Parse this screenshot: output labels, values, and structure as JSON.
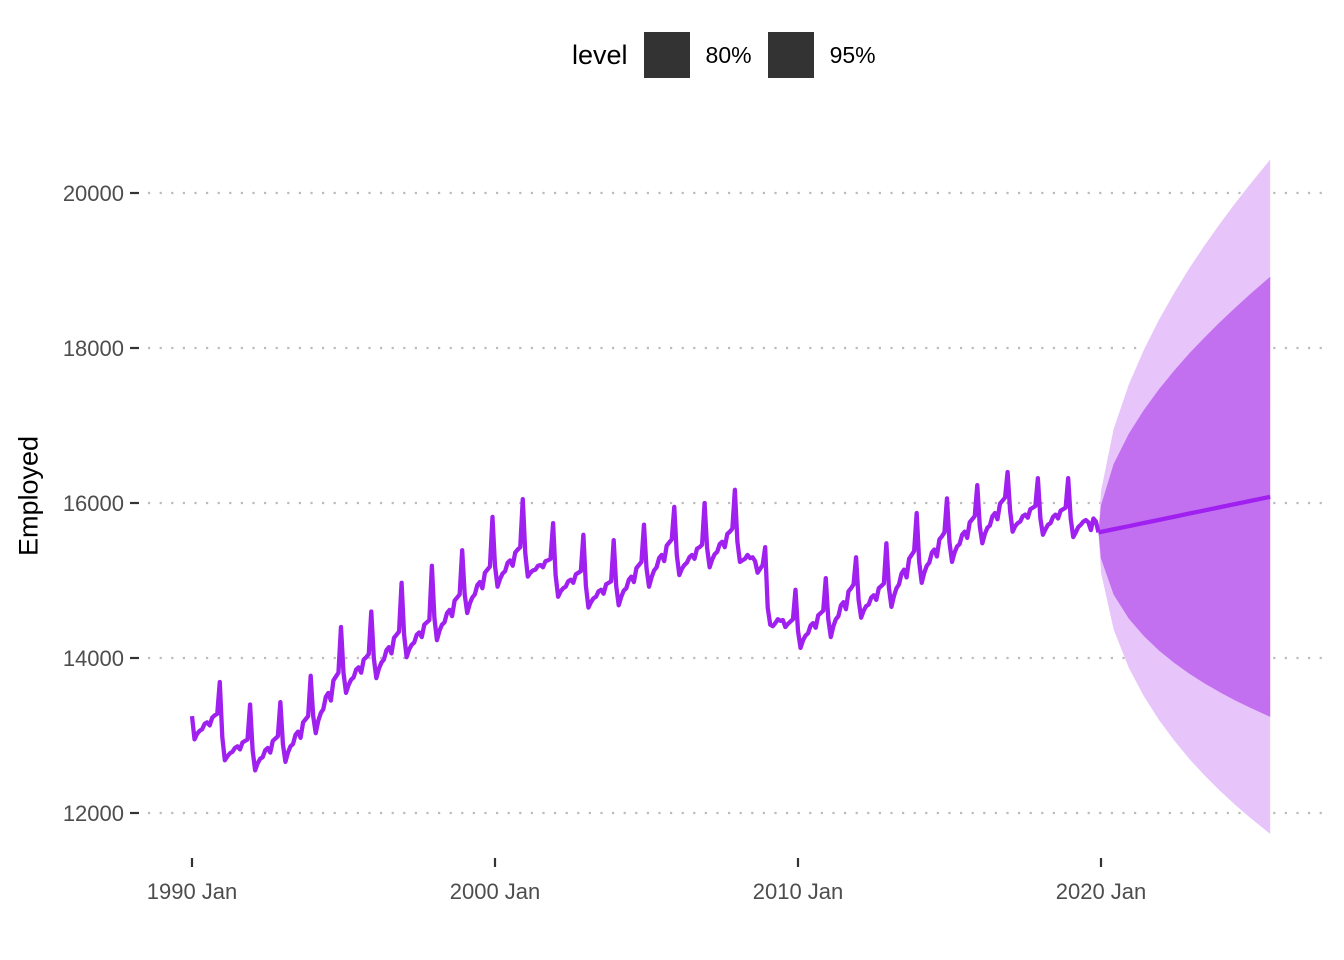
{
  "chart_data": {
    "type": "line",
    "title": "",
    "xlabel": "",
    "ylabel": "Employed",
    "ylim": [
      11700,
      20500
    ],
    "y_ticks": [
      "12000",
      "14000",
      "16000",
      "18000",
      "20000"
    ],
    "x_ticks": [
      "1990 Jan",
      "2000 Jan",
      "2010 Jan",
      "2020 Jan"
    ],
    "grid": "horizontal dotted",
    "legend": {
      "title": "level",
      "position": "top",
      "entries": [
        "80%",
        "95%"
      ]
    },
    "colors": {
      "line": "#A020F0",
      "interval_80": "#C370F0",
      "interval_95": "#E7C4FA",
      "legend_key": "#333333",
      "grid": "#BBBBBB"
    },
    "series": {
      "start": "1990 Jan",
      "frequency": "monthly",
      "years": [
        {
          "year": 1990,
          "values": [
            13250,
            12950,
            13020,
            13060,
            13080,
            13150,
            13170,
            13130,
            13230,
            13260,
            13280,
            13690
          ]
        },
        {
          "year": 1991,
          "values": [
            12980,
            12680,
            12730,
            12770,
            12790,
            12840,
            12860,
            12820,
            12910,
            12930,
            12950,
            13400
          ]
        },
        {
          "year": 1992,
          "values": [
            12810,
            12550,
            12640,
            12700,
            12720,
            12810,
            12840,
            12780,
            12930,
            12960,
            12990,
            13430
          ]
        },
        {
          "year": 1993,
          "values": [
            12890,
            12660,
            12780,
            12860,
            12890,
            13010,
            13050,
            12970,
            13170,
            13210,
            13250,
            13770
          ]
        },
        {
          "year": 1994,
          "values": [
            13250,
            13030,
            13190,
            13290,
            13340,
            13500,
            13550,
            13450,
            13710,
            13760,
            13810,
            14400
          ]
        },
        {
          "year": 1995,
          "values": [
            13810,
            13550,
            13650,
            13720,
            13750,
            13850,
            13880,
            13810,
            13980,
            14010,
            14050,
            14600
          ]
        },
        {
          "year": 1996,
          "values": [
            14000,
            13740,
            13860,
            13940,
            13980,
            14100,
            14140,
            14060,
            14260,
            14300,
            14340,
            14970
          ]
        },
        {
          "year": 1997,
          "values": [
            14300,
            14010,
            14110,
            14170,
            14200,
            14300,
            14330,
            14270,
            14430,
            14460,
            14490,
            15190
          ]
        },
        {
          "year": 1998,
          "values": [
            14520,
            14230,
            14350,
            14430,
            14460,
            14580,
            14620,
            14540,
            14740,
            14780,
            14820,
            15390
          ]
        },
        {
          "year": 1999,
          "values": [
            14820,
            14580,
            14700,
            14780,
            14820,
            14940,
            14980,
            14900,
            15100,
            15140,
            15180,
            15820
          ]
        },
        {
          "year": 2000,
          "values": [
            15190,
            14920,
            15020,
            15090,
            15120,
            15230,
            15260,
            15190,
            15360,
            15400,
            15430,
            16050
          ]
        },
        {
          "year": 2001,
          "values": [
            15350,
            15050,
            15100,
            15130,
            15140,
            15190,
            15200,
            15170,
            15250,
            15260,
            15280,
            15740
          ]
        },
        {
          "year": 2002,
          "values": [
            15070,
            14790,
            14860,
            14900,
            14920,
            14990,
            15010,
            14970,
            15080,
            15100,
            15120,
            15590
          ]
        },
        {
          "year": 2003,
          "values": [
            14930,
            14650,
            14720,
            14770,
            14790,
            14860,
            14880,
            14830,
            14950,
            14970,
            14990,
            15520
          ]
        },
        {
          "year": 2004,
          "values": [
            14930,
            14680,
            14790,
            14870,
            14900,
            15010,
            15050,
            14980,
            15160,
            15200,
            15240,
            15720
          ]
        },
        {
          "year": 2005,
          "values": [
            15160,
            14920,
            15040,
            15130,
            15170,
            15290,
            15330,
            15250,
            15450,
            15490,
            15530,
            15950
          ]
        },
        {
          "year": 2006,
          "values": [
            15330,
            15070,
            15150,
            15200,
            15230,
            15300,
            15330,
            15280,
            15410,
            15430,
            15460,
            16000
          ]
        },
        {
          "year": 2007,
          "values": [
            15420,
            15170,
            15270,
            15340,
            15370,
            15470,
            15500,
            15430,
            15600,
            15630,
            15670,
            16170
          ]
        },
        {
          "year": 2008,
          "values": [
            15500,
            15240,
            15260,
            15280,
            15330,
            15290,
            15300,
            15250,
            15100,
            15150,
            15200,
            15430
          ]
        },
        {
          "year": 2009,
          "values": [
            14650,
            14430,
            14410,
            14450,
            14500,
            14480,
            14490,
            14400,
            14440,
            14470,
            14500,
            14880
          ]
        },
        {
          "year": 2010,
          "values": [
            14350,
            14130,
            14230,
            14290,
            14320,
            14420,
            14450,
            14390,
            14550,
            14580,
            14610,
            15030
          ]
        },
        {
          "year": 2011,
          "values": [
            14500,
            14270,
            14410,
            14500,
            14540,
            14680,
            14720,
            14630,
            14860,
            14900,
            14950,
            15300
          ]
        },
        {
          "year": 2012,
          "values": [
            14750,
            14520,
            14610,
            14670,
            14690,
            14780,
            14810,
            14750,
            14900,
            14930,
            14960,
            15480
          ]
        },
        {
          "year": 2013,
          "values": [
            14910,
            14660,
            14800,
            14900,
            14950,
            15090,
            15140,
            15040,
            15280,
            15330,
            15380,
            15870
          ]
        },
        {
          "year": 2014,
          "values": [
            15240,
            14970,
            15100,
            15190,
            15230,
            15360,
            15400,
            15310,
            15530,
            15570,
            15620,
            16060
          ]
        },
        {
          "year": 2015,
          "values": [
            15490,
            15240,
            15360,
            15440,
            15470,
            15590,
            15630,
            15550,
            15750,
            15790,
            15830,
            16230
          ]
        },
        {
          "year": 2016,
          "values": [
            15700,
            15480,
            15600,
            15680,
            15710,
            15830,
            15870,
            15790,
            15990,
            16030,
            16070,
            16400
          ]
        },
        {
          "year": 2017,
          "values": [
            15900,
            15630,
            15700,
            15740,
            15760,
            15830,
            15850,
            15810,
            15920,
            15940,
            15960,
            16320
          ]
        },
        {
          "year": 2018,
          "values": [
            15800,
            15590,
            15660,
            15720,
            15740,
            15820,
            15850,
            15800,
            15900,
            15920,
            15940,
            16320
          ]
        },
        {
          "year": 2019,
          "values": [
            15800,
            15560,
            15620,
            15690,
            15720,
            15760,
            15780,
            15750,
            15650,
            15800,
            15760,
            15620
          ]
        }
      ]
    },
    "forecast": [
      {
        "date": "2020 Jan",
        "mean": 15627,
        "lo80": 15283,
        "hi80": 15971,
        "lo95": 15101,
        "hi95": 16153
      },
      {
        "date": "2020 Jun",
        "mean": 15661,
        "lo80": 14818,
        "hi80": 16504,
        "lo95": 14369,
        "hi95": 16953
      },
      {
        "date": "2020 Dec",
        "mean": 15701,
        "lo80": 14508,
        "hi80": 16894,
        "lo95": 13874,
        "hi95": 17528
      },
      {
        "date": "2021 Jun",
        "mean": 15742,
        "lo80": 14282,
        "hi80": 17202,
        "lo95": 13506,
        "hi95": 17978
      },
      {
        "date": "2021 Dec",
        "mean": 15782,
        "lo80": 14095,
        "hi80": 17469,
        "lo95": 13198,
        "hi95": 18366
      },
      {
        "date": "2022 Jun",
        "mean": 15823,
        "lo80": 13937,
        "hi80": 17709,
        "lo95": 12935,
        "hi95": 18711
      },
      {
        "date": "2022 Dec",
        "mean": 15864,
        "lo80": 13796,
        "hi80": 17932,
        "lo95": 12697,
        "hi95": 19031
      },
      {
        "date": "2023 Jun",
        "mean": 15904,
        "lo80": 13672,
        "hi80": 18136,
        "lo95": 12485,
        "hi95": 19323
      },
      {
        "date": "2023 Dec",
        "mean": 15945,
        "lo80": 13559,
        "hi80": 18331,
        "lo95": 12291,
        "hi95": 19599
      },
      {
        "date": "2024 Jun",
        "mean": 15985,
        "lo80": 13455,
        "hi80": 18515,
        "lo95": 12109,
        "hi95": 19861
      },
      {
        "date": "2024 Dec",
        "mean": 16026,
        "lo80": 13359,
        "hi80": 18693,
        "lo95": 11941,
        "hi95": 20111
      },
      {
        "date": "2025 Aug",
        "mean": 16080,
        "lo80": 13240,
        "hi80": 18920,
        "lo95": 11730,
        "hi95": 20430
      }
    ]
  }
}
